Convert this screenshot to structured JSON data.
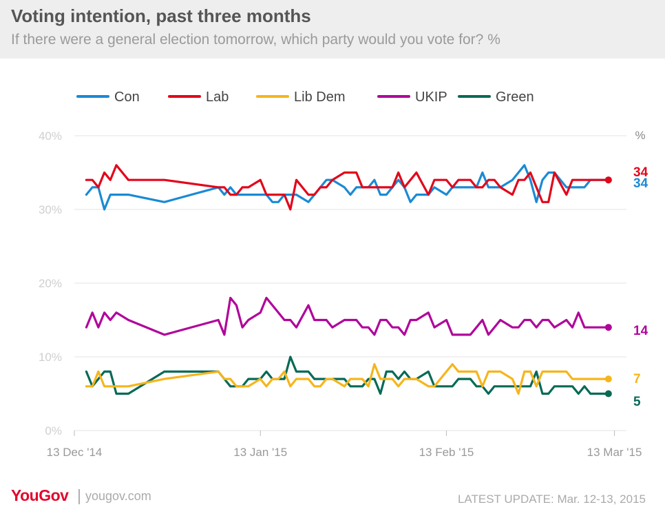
{
  "chart_data": {
    "type": "line",
    "title": "Voting intention, past three months",
    "subtitle": "If there were a general election tomorrow, which party would you vote for? %",
    "ylabel": "%",
    "ylim": [
      0,
      40
    ],
    "yticks": [
      "0%",
      "10%",
      "20%",
      "30%",
      "40%"
    ],
    "yticks_values": [
      0,
      10,
      20,
      30,
      40
    ],
    "xticks": [
      "13 Dec '14",
      "13 Jan '15",
      "13 Feb '15",
      "13 Mar '15"
    ],
    "xticks_values": [
      "2014-12-13",
      "2015-01-13",
      "2015-02-13",
      "2015-03-13"
    ],
    "xlim": [
      "2014-12-13",
      "2015-03-15"
    ],
    "grid": true,
    "legend_position": "top",
    "x": [
      "2014-12-15",
      "2014-12-16",
      "2014-12-17",
      "2014-12-18",
      "2014-12-19",
      "2014-12-20",
      "2014-12-22",
      "2014-12-28",
      "2015-01-06",
      "2015-01-07",
      "2015-01-08",
      "2015-01-09",
      "2015-01-10",
      "2015-01-11",
      "2015-01-13",
      "2015-01-14",
      "2015-01-15",
      "2015-01-16",
      "2015-01-17",
      "2015-01-18",
      "2015-01-19",
      "2015-01-21",
      "2015-01-22",
      "2015-01-23",
      "2015-01-24",
      "2015-01-25",
      "2015-01-27",
      "2015-01-28",
      "2015-01-29",
      "2015-01-30",
      "2015-01-31",
      "2015-02-01",
      "2015-02-02",
      "2015-02-03",
      "2015-02-04",
      "2015-02-05",
      "2015-02-06",
      "2015-02-07",
      "2015-02-08",
      "2015-02-10",
      "2015-02-11",
      "2015-02-13",
      "2015-02-14",
      "2015-02-15",
      "2015-02-17",
      "2015-02-18",
      "2015-02-19",
      "2015-02-20",
      "2015-02-21",
      "2015-02-22",
      "2015-02-24",
      "2015-02-25",
      "2015-02-26",
      "2015-02-27",
      "2015-02-28",
      "2015-03-01",
      "2015-03-02",
      "2015-03-03",
      "2015-03-05",
      "2015-03-06",
      "2015-03-07",
      "2015-03-08",
      "2015-03-09",
      "2015-03-10",
      "2015-03-11",
      "2015-03-12"
    ],
    "series": [
      {
        "name": "Con",
        "color": "#1a8ad4",
        "end_label": "34",
        "values": [
          32,
          33,
          33,
          30,
          32,
          32,
          32,
          31,
          33,
          32,
          33,
          32,
          32,
          32,
          32,
          32,
          31,
          31,
          32,
          32,
          32,
          31,
          32,
          33,
          34,
          34,
          33,
          32,
          33,
          33,
          33,
          34,
          32,
          32,
          33,
          34,
          33,
          31,
          32,
          32,
          33,
          32,
          33,
          33,
          33,
          33,
          35,
          33,
          33,
          33,
          34,
          35,
          36,
          34,
          31,
          34,
          35,
          35,
          33,
          33,
          33,
          33,
          34,
          34,
          34,
          34
        ]
      },
      {
        "name": "Lab",
        "color": "#e2061b",
        "end_label": "34",
        "values": [
          34,
          34,
          33,
          35,
          34,
          36,
          34,
          34,
          33,
          33,
          32,
          32,
          33,
          33,
          34,
          32,
          32,
          32,
          32,
          30,
          34,
          32,
          32,
          33,
          33,
          34,
          35,
          35,
          35,
          33,
          33,
          33,
          33,
          33,
          33,
          35,
          33,
          34,
          35,
          32,
          34,
          34,
          33,
          34,
          34,
          33,
          33,
          34,
          34,
          33,
          32,
          34,
          34,
          35,
          33,
          31,
          31,
          35,
          32,
          34,
          34,
          34,
          34,
          34,
          34,
          34
        ]
      },
      {
        "name": "Lib Dem",
        "color": "#f5b51c",
        "end_label": "7",
        "values": [
          6,
          6,
          8,
          6,
          6,
          6,
          6,
          7,
          8,
          7,
          7,
          6,
          6,
          6,
          7,
          6,
          7,
          7,
          8,
          6,
          7,
          7,
          6,
          6,
          7,
          7,
          6,
          7,
          7,
          7,
          6,
          9,
          7,
          7,
          7,
          6,
          7,
          7,
          7,
          6,
          6,
          8,
          9,
          8,
          8,
          8,
          6,
          8,
          8,
          8,
          7,
          5,
          8,
          8,
          6,
          8,
          8,
          8,
          8,
          7,
          7,
          7,
          7,
          7,
          7,
          7
        ]
      },
      {
        "name": "UKIP",
        "color": "#b0049b",
        "end_label": "14",
        "values": [
          14,
          16,
          14,
          16,
          15,
          16,
          15,
          13,
          15,
          13,
          18,
          17,
          14,
          15,
          16,
          18,
          17,
          16,
          15,
          15,
          14,
          17,
          15,
          15,
          15,
          14,
          15,
          15,
          15,
          14,
          14,
          13,
          15,
          15,
          14,
          14,
          13,
          15,
          15,
          16,
          14,
          15,
          13,
          13,
          13,
          14,
          15,
          13,
          14,
          15,
          14,
          14,
          15,
          15,
          14,
          15,
          15,
          14,
          15,
          14,
          16,
          14,
          14,
          14,
          14,
          14
        ]
      },
      {
        "name": "Green",
        "color": "#066a55",
        "end_label": "5",
        "values": [
          8,
          6,
          7,
          8,
          8,
          5,
          5,
          8,
          8,
          7,
          6,
          6,
          6,
          7,
          7,
          8,
          7,
          7,
          7,
          10,
          8,
          8,
          7,
          7,
          7,
          7,
          7,
          6,
          6,
          6,
          7,
          7,
          5,
          8,
          8,
          7,
          8,
          7,
          7,
          8,
          6,
          6,
          6,
          7,
          7,
          6,
          6,
          5,
          6,
          6,
          6,
          6,
          6,
          6,
          8,
          5,
          5,
          6,
          6,
          6,
          5,
          6,
          5,
          5,
          5,
          5
        ]
      }
    ]
  },
  "branding": {
    "logo": "YouGov",
    "separator": "|",
    "site": "yougov.com"
  },
  "footer": {
    "update": "LATEST UPDATE: Mar. 12-13, 2015"
  }
}
